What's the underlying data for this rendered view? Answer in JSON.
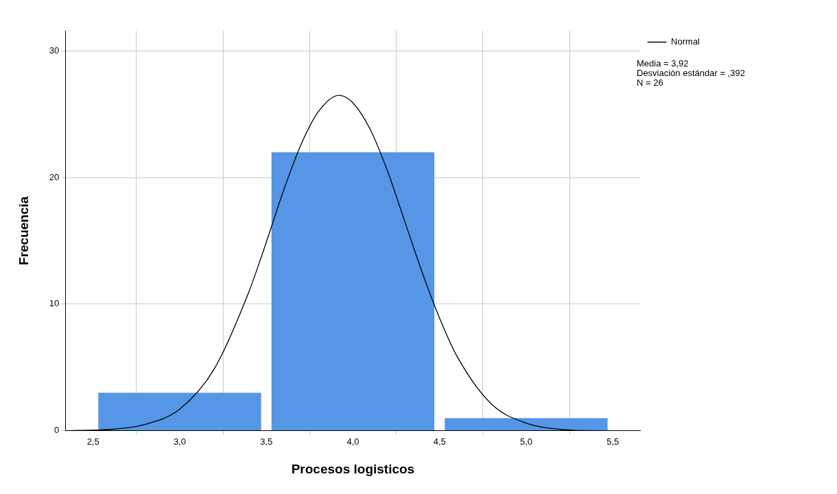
{
  "chart_data": {
    "type": "histogram",
    "xlabel": "Procesos logisticos",
    "ylabel": "Frecuencia",
    "bins": [
      2.5,
      3.5,
      4.5,
      5.5
    ],
    "series": [
      {
        "color": "#5596e6",
        "values": [
          3,
          22,
          1
        ]
      },
      {
        "type": "line",
        "name": "Normal",
        "color": "#000000",
        "x": [
          2.34,
          2.6,
          2.8,
          3.0,
          3.2,
          3.4,
          3.5,
          3.6,
          3.7,
          3.8,
          3.92,
          4.0,
          4.1,
          4.2,
          4.3,
          4.4,
          4.5,
          4.6,
          4.8,
          5.0,
          5.2,
          5.4,
          5.66
        ],
        "values": [
          0.0,
          0.1,
          0.5,
          1.7,
          4.9,
          11.0,
          14.9,
          19.0,
          22.6,
          25.2,
          26.5,
          25.9,
          23.8,
          20.5,
          16.5,
          12.5,
          8.9,
          5.9,
          2.1,
          0.6,
          0.1,
          0.0,
          0.0
        ]
      }
    ],
    "xlim": [
      2.34,
      5.66
    ],
    "xticks": [
      {
        "value": 2.5,
        "label": "2,5"
      },
      {
        "value": 3.0,
        "label": "3,0"
      },
      {
        "value": 3.5,
        "label": "3,5"
      },
      {
        "value": 4.0,
        "label": "4,0"
      },
      {
        "value": 4.5,
        "label": "4,5"
      },
      {
        "value": 5.0,
        "label": "5,0"
      },
      {
        "value": 5.5,
        "label": "5,5"
      }
    ],
    "ylim": [
      0,
      31.6
    ],
    "yticks": [
      0,
      10,
      20,
      30
    ],
    "grid": true,
    "legend": "top right",
    "marker": "none",
    "line_style": "solid",
    "annotations": [
      "Media = 3,92",
      "Desviación estándar = ,392",
      "N = 26"
    ]
  }
}
